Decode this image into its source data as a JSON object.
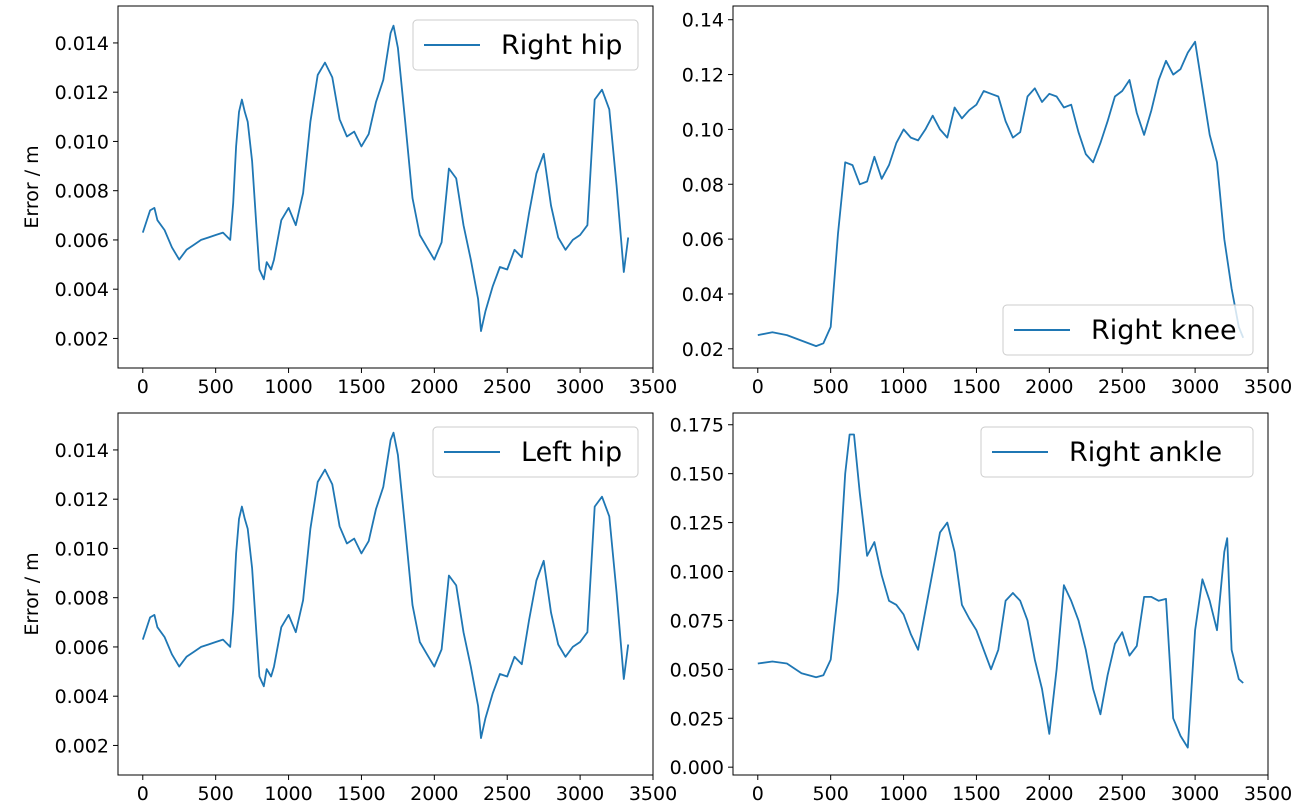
{
  "chart_data": [
    {
      "type": "line",
      "legend": "Right hip",
      "legend_position": "top-right",
      "ylabel": "Error / m",
      "xlim": [
        -170,
        3500
      ],
      "ylim": [
        0.0008,
        0.0155
      ],
      "xticks": [
        "0",
        "500",
        "1000",
        "1500",
        "2000",
        "2500",
        "3000",
        "3500"
      ],
      "yticks": [
        "0.002",
        "0.004",
        "0.006",
        "0.008",
        "0.010",
        "0.012",
        "0.014"
      ],
      "series": [
        {
          "name": "Right hip",
          "x": [
            0,
            50,
            80,
            100,
            150,
            200,
            250,
            300,
            350,
            400,
            450,
            500,
            550,
            600,
            620,
            640,
            660,
            680,
            700,
            720,
            750,
            780,
            800,
            830,
            850,
            880,
            900,
            950,
            1000,
            1050,
            1100,
            1150,
            1200,
            1250,
            1300,
            1350,
            1400,
            1450,
            1500,
            1550,
            1600,
            1650,
            1700,
            1720,
            1750,
            1800,
            1850,
            1900,
            1950,
            2000,
            2050,
            2100,
            2150,
            2200,
            2250,
            2300,
            2320,
            2350,
            2400,
            2450,
            2500,
            2550,
            2600,
            2650,
            2700,
            2750,
            2800,
            2850,
            2900,
            2950,
            3000,
            3050,
            3100,
            3150,
            3200,
            3250,
            3300,
            3330
          ],
          "values": [
            0.0063,
            0.0072,
            0.0073,
            0.0068,
            0.0064,
            0.0057,
            0.0052,
            0.0056,
            0.0058,
            0.006,
            0.0061,
            0.0062,
            0.0063,
            0.006,
            0.0075,
            0.0098,
            0.0112,
            0.0117,
            0.0112,
            0.0108,
            0.0092,
            0.0065,
            0.0048,
            0.0044,
            0.0051,
            0.0048,
            0.0052,
            0.0068,
            0.0073,
            0.0066,
            0.0079,
            0.0108,
            0.0127,
            0.0132,
            0.0126,
            0.0109,
            0.0102,
            0.0104,
            0.0098,
            0.0103,
            0.0116,
            0.0125,
            0.0144,
            0.0147,
            0.0138,
            0.0108,
            0.0077,
            0.0062,
            0.0057,
            0.0052,
            0.0059,
            0.0089,
            0.0085,
            0.0066,
            0.0052,
            0.0036,
            0.0023,
            0.0031,
            0.0041,
            0.0049,
            0.0048,
            0.0056,
            0.0053,
            0.0071,
            0.0087,
            0.0095,
            0.0074,
            0.0061,
            0.0056,
            0.006,
            0.0062,
            0.0066,
            0.0117,
            0.0121,
            0.0113,
            0.0082,
            0.0047,
            0.0061
          ]
        }
      ]
    },
    {
      "type": "line",
      "legend": "Right knee",
      "legend_position": "bottom-right",
      "ylabel": "",
      "xlim": [
        -170,
        3500
      ],
      "ylim": [
        0.013,
        0.145
      ],
      "xticks": [
        "0",
        "500",
        "1000",
        "1500",
        "2000",
        "2500",
        "3000",
        "3500"
      ],
      "yticks": [
        "0.02",
        "0.04",
        "0.06",
        "0.08",
        "0.10",
        "0.12",
        "0.14"
      ],
      "series": [
        {
          "name": "Right knee",
          "x": [
            0,
            100,
            200,
            300,
            400,
            450,
            500,
            550,
            600,
            650,
            700,
            750,
            800,
            850,
            900,
            950,
            1000,
            1050,
            1100,
            1150,
            1200,
            1250,
            1300,
            1350,
            1400,
            1450,
            1500,
            1550,
            1600,
            1650,
            1700,
            1750,
            1800,
            1850,
            1900,
            1950,
            2000,
            2050,
            2100,
            2150,
            2200,
            2250,
            2300,
            2350,
            2400,
            2450,
            2500,
            2550,
            2600,
            2650,
            2700,
            2750,
            2800,
            2850,
            2900,
            2950,
            3000,
            3050,
            3100,
            3150,
            3200,
            3250,
            3300,
            3330
          ],
          "values": [
            0.025,
            0.026,
            0.025,
            0.023,
            0.021,
            0.022,
            0.028,
            0.062,
            0.088,
            0.087,
            0.08,
            0.081,
            0.09,
            0.082,
            0.087,
            0.095,
            0.1,
            0.097,
            0.096,
            0.1,
            0.105,
            0.1,
            0.097,
            0.108,
            0.104,
            0.107,
            0.109,
            0.114,
            0.113,
            0.112,
            0.103,
            0.097,
            0.099,
            0.112,
            0.115,
            0.11,
            0.113,
            0.112,
            0.108,
            0.109,
            0.099,
            0.091,
            0.088,
            0.095,
            0.103,
            0.112,
            0.114,
            0.118,
            0.106,
            0.098,
            0.107,
            0.118,
            0.125,
            0.12,
            0.122,
            0.128,
            0.132,
            0.115,
            0.098,
            0.088,
            0.06,
            0.042,
            0.028,
            0.024
          ]
        }
      ]
    },
    {
      "type": "line",
      "legend": "Left hip",
      "legend_position": "top-right",
      "ylabel": "Error / m",
      "xlim": [
        -170,
        3500
      ],
      "ylim": [
        0.0008,
        0.0155
      ],
      "xticks": [
        "0",
        "500",
        "1000",
        "1500",
        "2000",
        "2500",
        "3000",
        "3500"
      ],
      "yticks": [
        "0.002",
        "0.004",
        "0.006",
        "0.008",
        "0.010",
        "0.012",
        "0.014"
      ],
      "series": [
        {
          "name": "Left hip",
          "x": [
            0,
            50,
            80,
            100,
            150,
            200,
            250,
            300,
            350,
            400,
            450,
            500,
            550,
            600,
            620,
            640,
            660,
            680,
            700,
            720,
            750,
            780,
            800,
            830,
            850,
            880,
            900,
            950,
            1000,
            1050,
            1100,
            1150,
            1200,
            1250,
            1300,
            1350,
            1400,
            1450,
            1500,
            1550,
            1600,
            1650,
            1700,
            1720,
            1750,
            1800,
            1850,
            1900,
            1950,
            2000,
            2050,
            2100,
            2150,
            2200,
            2250,
            2300,
            2320,
            2350,
            2400,
            2450,
            2500,
            2550,
            2600,
            2650,
            2700,
            2750,
            2800,
            2850,
            2900,
            2950,
            3000,
            3050,
            3100,
            3150,
            3200,
            3250,
            3300,
            3330
          ],
          "values": [
            0.0063,
            0.0072,
            0.0073,
            0.0068,
            0.0064,
            0.0057,
            0.0052,
            0.0056,
            0.0058,
            0.006,
            0.0061,
            0.0062,
            0.0063,
            0.006,
            0.0075,
            0.0098,
            0.0112,
            0.0117,
            0.0112,
            0.0108,
            0.0092,
            0.0065,
            0.0048,
            0.0044,
            0.0051,
            0.0048,
            0.0052,
            0.0068,
            0.0073,
            0.0066,
            0.0079,
            0.0108,
            0.0127,
            0.0132,
            0.0126,
            0.0109,
            0.0102,
            0.0104,
            0.0098,
            0.0103,
            0.0116,
            0.0125,
            0.0144,
            0.0147,
            0.0138,
            0.0108,
            0.0077,
            0.0062,
            0.0057,
            0.0052,
            0.0059,
            0.0089,
            0.0085,
            0.0066,
            0.0052,
            0.0036,
            0.0023,
            0.0031,
            0.0041,
            0.0049,
            0.0048,
            0.0056,
            0.0053,
            0.0071,
            0.0087,
            0.0095,
            0.0074,
            0.0061,
            0.0056,
            0.006,
            0.0062,
            0.0066,
            0.0117,
            0.0121,
            0.0113,
            0.0082,
            0.0047,
            0.0061
          ]
        }
      ]
    },
    {
      "type": "line",
      "legend": "Right ankle",
      "legend_position": "top-right",
      "ylabel": "",
      "xlim": [
        -170,
        3500
      ],
      "ylim": [
        -0.004,
        0.181
      ],
      "xticks": [
        "0",
        "500",
        "1000",
        "1500",
        "2000",
        "2500",
        "3000",
        "3500"
      ],
      "yticks": [
        "0.000",
        "0.025",
        "0.050",
        "0.075",
        "0.100",
        "0.125",
        "0.150",
        "0.175"
      ],
      "series": [
        {
          "name": "Right ankle",
          "x": [
            0,
            100,
            200,
            300,
            400,
            450,
            500,
            550,
            600,
            630,
            660,
            700,
            750,
            800,
            850,
            900,
            950,
            1000,
            1050,
            1100,
            1150,
            1200,
            1250,
            1300,
            1350,
            1400,
            1450,
            1500,
            1550,
            1600,
            1650,
            1700,
            1750,
            1800,
            1850,
            1900,
            1950,
            2000,
            2050,
            2100,
            2150,
            2200,
            2250,
            2300,
            2350,
            2400,
            2450,
            2500,
            2550,
            2600,
            2650,
            2700,
            2750,
            2800,
            2850,
            2900,
            2950,
            3000,
            3050,
            3100,
            3150,
            3200,
            3220,
            3250,
            3300,
            3330
          ],
          "values": [
            0.053,
            0.054,
            0.053,
            0.048,
            0.046,
            0.047,
            0.055,
            0.09,
            0.15,
            0.17,
            0.17,
            0.14,
            0.108,
            0.115,
            0.098,
            0.085,
            0.083,
            0.078,
            0.068,
            0.06,
            0.08,
            0.1,
            0.12,
            0.125,
            0.11,
            0.083,
            0.076,
            0.07,
            0.06,
            0.05,
            0.06,
            0.085,
            0.089,
            0.085,
            0.075,
            0.055,
            0.04,
            0.017,
            0.05,
            0.093,
            0.085,
            0.075,
            0.06,
            0.04,
            0.027,
            0.047,
            0.063,
            0.069,
            0.057,
            0.062,
            0.087,
            0.087,
            0.085,
            0.086,
            0.025,
            0.016,
            0.01,
            0.07,
            0.096,
            0.085,
            0.07,
            0.11,
            0.117,
            0.06,
            0.045,
            0.043
          ]
        }
      ]
    }
  ]
}
